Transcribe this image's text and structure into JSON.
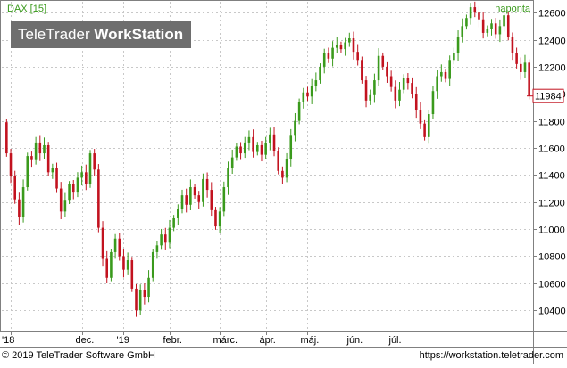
{
  "header": {
    "instrument": "DAX [15]",
    "period": "naponta",
    "last_value": "11984"
  },
  "watermark": {
    "brand": "TeleTrader",
    "product": "WorkStation"
  },
  "footer": {
    "copyright": "© 2019 TeleTrader Software GmbH",
    "url": "https://workstation.teletrader.com"
  },
  "colors": {
    "up": "#3a9a1c",
    "down": "#c2121f",
    "header_text": "#3a9a1c",
    "last_value_marker": "#c2121f"
  },
  "chart_data": {
    "type": "candlestick",
    "title": "DAX [15]",
    "period": "naponta",
    "ylim": [
      10250,
      12680
    ],
    "yticks": [
      10400,
      10600,
      10800,
      11000,
      11200,
      11400,
      11600,
      11800,
      12000,
      12200,
      12400,
      12600
    ],
    "xticks": [
      "'18",
      "dec.",
      "'19",
      "febr.",
      "márc.",
      "ápr.",
      "máj.",
      "jún.",
      "júl."
    ],
    "last_value": 11984,
    "grid": true,
    "series": [
      {
        "o": 11790,
        "c": 11560
      },
      {
        "o": 11560,
        "c": 11390
      },
      {
        "o": 11390,
        "c": 11220
      },
      {
        "o": 11220,
        "c": 11090
      },
      {
        "o": 11090,
        "c": 11310
      },
      {
        "o": 11310,
        "c": 11540
      },
      {
        "o": 11540,
        "c": 11510
      },
      {
        "o": 11510,
        "c": 11640
      },
      {
        "o": 11640,
        "c": 11560
      },
      {
        "o": 11560,
        "c": 11620
      },
      {
        "o": 11620,
        "c": 11420
      },
      {
        "o": 11420,
        "c": 11450
      },
      {
        "o": 11450,
        "c": 11300
      },
      {
        "o": 11300,
        "c": 11130
      },
      {
        "o": 11130,
        "c": 11210
      },
      {
        "o": 11210,
        "c": 11330
      },
      {
        "o": 11330,
        "c": 11270
      },
      {
        "o": 11270,
        "c": 11380
      },
      {
        "o": 11380,
        "c": 11420
      },
      {
        "o": 11420,
        "c": 11330
      },
      {
        "o": 11330,
        "c": 11560
      },
      {
        "o": 11560,
        "c": 11440
      },
      {
        "o": 11440,
        "c": 11010
      },
      {
        "o": 11010,
        "c": 10780
      },
      {
        "o": 10780,
        "c": 10640
      },
      {
        "o": 10640,
        "c": 10830
      },
      {
        "o": 10830,
        "c": 10930
      },
      {
        "o": 10930,
        "c": 10800
      },
      {
        "o": 10800,
        "c": 10700
      },
      {
        "o": 10700,
        "c": 10770
      },
      {
        "o": 10770,
        "c": 10560
      },
      {
        "o": 10560,
        "c": 10400
      },
      {
        "o": 10400,
        "c": 10550
      },
      {
        "o": 10550,
        "c": 10500
      },
      {
        "o": 10500,
        "c": 10640
      },
      {
        "o": 10640,
        "c": 10830
      },
      {
        "o": 10830,
        "c": 10880
      },
      {
        "o": 10880,
        "c": 10960
      },
      {
        "o": 10960,
        "c": 10900
      },
      {
        "o": 10900,
        "c": 11010
      },
      {
        "o": 11010,
        "c": 11080
      },
      {
        "o": 11080,
        "c": 11150
      },
      {
        "o": 11150,
        "c": 11250
      },
      {
        "o": 11250,
        "c": 11180
      },
      {
        "o": 11180,
        "c": 11310
      },
      {
        "o": 11310,
        "c": 11250
      },
      {
        "o": 11250,
        "c": 11200
      },
      {
        "o": 11200,
        "c": 11370
      },
      {
        "o": 11370,
        "c": 11290
      },
      {
        "o": 11290,
        "c": 11140
      },
      {
        "o": 11140,
        "c": 11020
      },
      {
        "o": 11020,
        "c": 11130
      },
      {
        "o": 11130,
        "c": 11310
      },
      {
        "o": 11310,
        "c": 11450
      },
      {
        "o": 11450,
        "c": 11530
      },
      {
        "o": 11530,
        "c": 11610
      },
      {
        "o": 11610,
        "c": 11560
      },
      {
        "o": 11560,
        "c": 11640
      },
      {
        "o": 11640,
        "c": 11680
      },
      {
        "o": 11680,
        "c": 11570
      },
      {
        "o": 11570,
        "c": 11620
      },
      {
        "o": 11620,
        "c": 11550
      },
      {
        "o": 11550,
        "c": 11640
      },
      {
        "o": 11640,
        "c": 11700
      },
      {
        "o": 11700,
        "c": 11580
      },
      {
        "o": 11580,
        "c": 11430
      },
      {
        "o": 11430,
        "c": 11380
      },
      {
        "o": 11380,
        "c": 11520
      },
      {
        "o": 11520,
        "c": 11690
      },
      {
        "o": 11690,
        "c": 11800
      },
      {
        "o": 11800,
        "c": 11940
      },
      {
        "o": 11940,
        "c": 12010
      },
      {
        "o": 12010,
        "c": 11980
      },
      {
        "o": 11980,
        "c": 12060
      },
      {
        "o": 12060,
        "c": 12100
      },
      {
        "o": 12100,
        "c": 12200
      },
      {
        "o": 12200,
        "c": 12300
      },
      {
        "o": 12300,
        "c": 12260
      },
      {
        "o": 12260,
        "c": 12340
      },
      {
        "o": 12340,
        "c": 12360
      },
      {
        "o": 12360,
        "c": 12330
      },
      {
        "o": 12330,
        "c": 12380
      },
      {
        "o": 12380,
        "c": 12410
      },
      {
        "o": 12410,
        "c": 12310
      },
      {
        "o": 12310,
        "c": 12250
      },
      {
        "o": 12250,
        "c": 12100
      },
      {
        "o": 12100,
        "c": 11950
      },
      {
        "o": 11950,
        "c": 11990
      },
      {
        "o": 11990,
        "c": 12100
      },
      {
        "o": 12100,
        "c": 12280
      },
      {
        "o": 12280,
        "c": 12200
      },
      {
        "o": 12200,
        "c": 12130
      },
      {
        "o": 12130,
        "c": 12050
      },
      {
        "o": 12050,
        "c": 11950
      },
      {
        "o": 11950,
        "c": 12030
      },
      {
        "o": 12030,
        "c": 12120
      },
      {
        "o": 12120,
        "c": 12080
      },
      {
        "o": 12080,
        "c": 12000
      },
      {
        "o": 12000,
        "c": 11880
      },
      {
        "o": 11880,
        "c": 11780
      },
      {
        "o": 11780,
        "c": 11680
      },
      {
        "o": 11680,
        "c": 11850
      },
      {
        "o": 11850,
        "c": 12020
      },
      {
        "o": 12020,
        "c": 12130
      },
      {
        "o": 12130,
        "c": 12160
      },
      {
        "o": 12160,
        "c": 12110
      },
      {
        "o": 12110,
        "c": 12250
      },
      {
        "o": 12250,
        "c": 12300
      },
      {
        "o": 12300,
        "c": 12420
      },
      {
        "o": 12420,
        "c": 12500
      },
      {
        "o": 12500,
        "c": 12560
      },
      {
        "o": 12560,
        "c": 12640
      },
      {
        "o": 12640,
        "c": 12600
      },
      {
        "o": 12600,
        "c": 12550
      },
      {
        "o": 12550,
        "c": 12450
      },
      {
        "o": 12450,
        "c": 12480
      },
      {
        "o": 12480,
        "c": 12520
      },
      {
        "o": 12520,
        "c": 12440
      },
      {
        "o": 12440,
        "c": 12500
      },
      {
        "o": 12500,
        "c": 12580
      },
      {
        "o": 12580,
        "c": 12420
      },
      {
        "o": 12420,
        "c": 12300
      },
      {
        "o": 12300,
        "c": 12220
      },
      {
        "o": 12220,
        "c": 12160
      },
      {
        "o": 12160,
        "c": 12230
      },
      {
        "o": 12230,
        "c": 11984
      }
    ]
  }
}
